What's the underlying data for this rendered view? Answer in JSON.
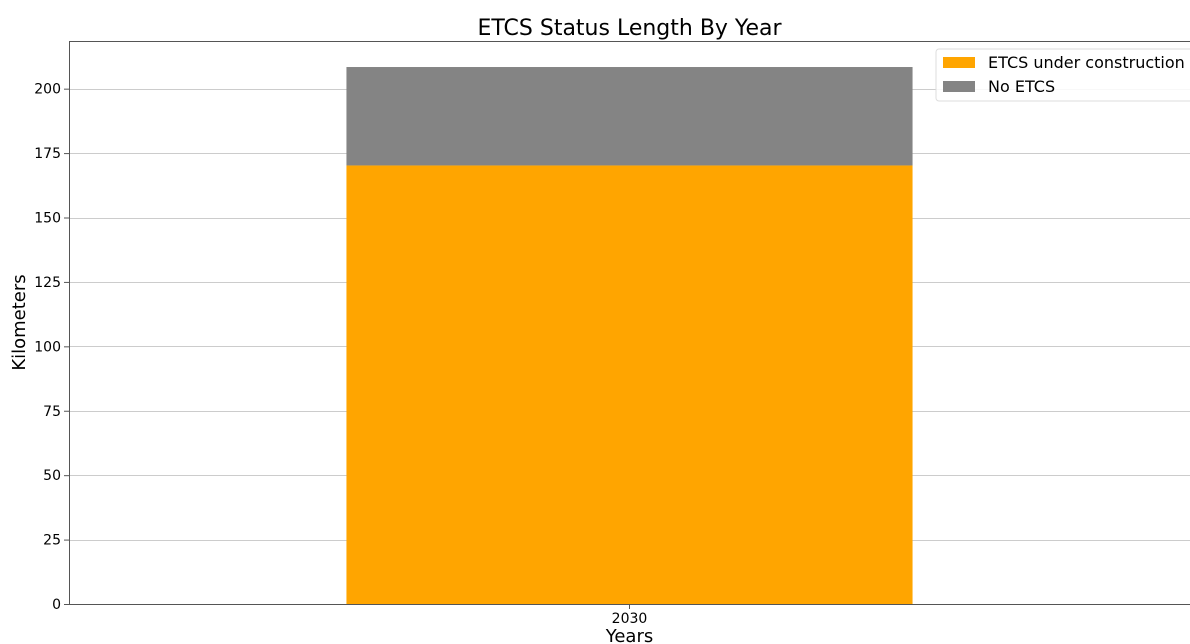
{
  "chart_data": {
    "type": "bar",
    "stacked": true,
    "title": "ETCS Status Length By Year",
    "xlabel": "Years",
    "ylabel": "Kilometers",
    "categories": [
      "2030"
    ],
    "series": [
      {
        "name": "ETCS under construction",
        "values": [
          170.2
        ],
        "color": "#FFA500"
      },
      {
        "name": "No ETCS",
        "values": [
          38.2
        ],
        "color": "#848484"
      }
    ],
    "ylim": [
      0,
      218.5
    ],
    "yticks": [
      0,
      25,
      50,
      75,
      100,
      125,
      150,
      175,
      200
    ],
    "grid": "horizontal",
    "legend_position": "top-right",
    "gridline_color": "#cccccc",
    "axis_color": "#555555"
  }
}
